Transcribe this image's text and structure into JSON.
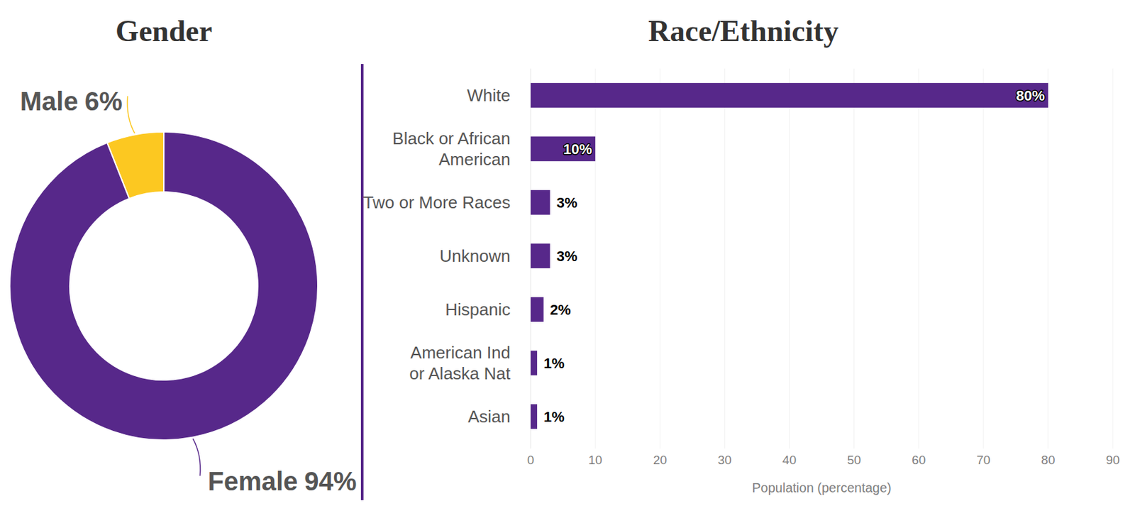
{
  "chart_data": [
    {
      "type": "pie",
      "title": "Gender",
      "categories": [
        "Male",
        "Female"
      ],
      "values": [
        6,
        94
      ],
      "value_labels": [
        "6%",
        "94%"
      ],
      "colors": [
        "#fcc821",
        "#57288a"
      ],
      "data_labels": true
    },
    {
      "type": "bar",
      "title": "Race/Ethnicity",
      "orientation": "horizontal",
      "categories": [
        "White",
        "Black or African American",
        "Two or More Races",
        "Unknown",
        "Hispanic",
        "American Ind or Alaska Nat",
        "Asian"
      ],
      "values": [
        80,
        10,
        3,
        3,
        2,
        1,
        1
      ],
      "value_labels": [
        "80%",
        "10%",
        "3%",
        "3%",
        "2%",
        "1%",
        "1%"
      ],
      "color": "#57288a",
      "data_labels": true,
      "xlabel": "Population (percentage)",
      "xlim": [
        0,
        90
      ],
      "xticks": [
        0,
        10,
        20,
        30,
        40,
        50,
        60,
        70,
        80,
        90
      ],
      "grid": true
    }
  ]
}
